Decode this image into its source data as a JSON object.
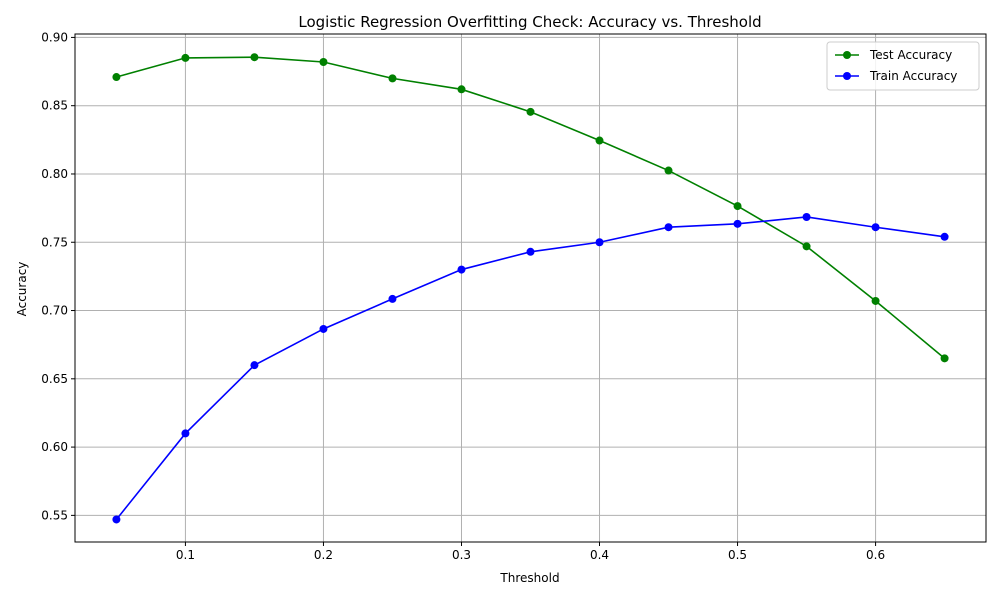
{
  "chart_data": {
    "type": "line",
    "title": "Logistic Regression Overfitting Check: Accuracy vs. Threshold",
    "xlabel": "Threshold",
    "ylabel": "Accuracy",
    "x": [
      0.05,
      0.1,
      0.15,
      0.2,
      0.25,
      0.3,
      0.35,
      0.4,
      0.45,
      0.5,
      0.55,
      0.6,
      0.65
    ],
    "series": [
      {
        "name": "Test Accuracy",
        "color": "#008000",
        "marker": "circle",
        "values": [
          0.871,
          0.885,
          0.8855,
          0.882,
          0.87,
          0.862,
          0.8455,
          0.8245,
          0.8025,
          0.7765,
          0.747,
          0.707,
          0.665
        ]
      },
      {
        "name": "Train Accuracy",
        "color": "#0000ff",
        "marker": "circle",
        "values": [
          0.547,
          0.61,
          0.66,
          0.6865,
          0.7085,
          0.73,
          0.743,
          0.75,
          0.761,
          0.7635,
          0.7685,
          0.761,
          0.754
        ]
      }
    ],
    "xlim": [
      0.02,
      0.68
    ],
    "ylim": [
      0.5305,
      0.9025
    ],
    "xticks": [
      0.1,
      0.2,
      0.3,
      0.4,
      0.5,
      0.6
    ],
    "xtick_labels": [
      "0.1",
      "0.2",
      "0.3",
      "0.4",
      "0.5",
      "0.6"
    ],
    "yticks": [
      0.55,
      0.6,
      0.65,
      0.7,
      0.75,
      0.8,
      0.85,
      0.9
    ],
    "ytick_labels": [
      "0.55",
      "0.60",
      "0.65",
      "0.70",
      "0.75",
      "0.80",
      "0.85",
      "0.90"
    ],
    "grid": true,
    "grid_color": "#b0b0b0",
    "legend_position": "top-right"
  }
}
